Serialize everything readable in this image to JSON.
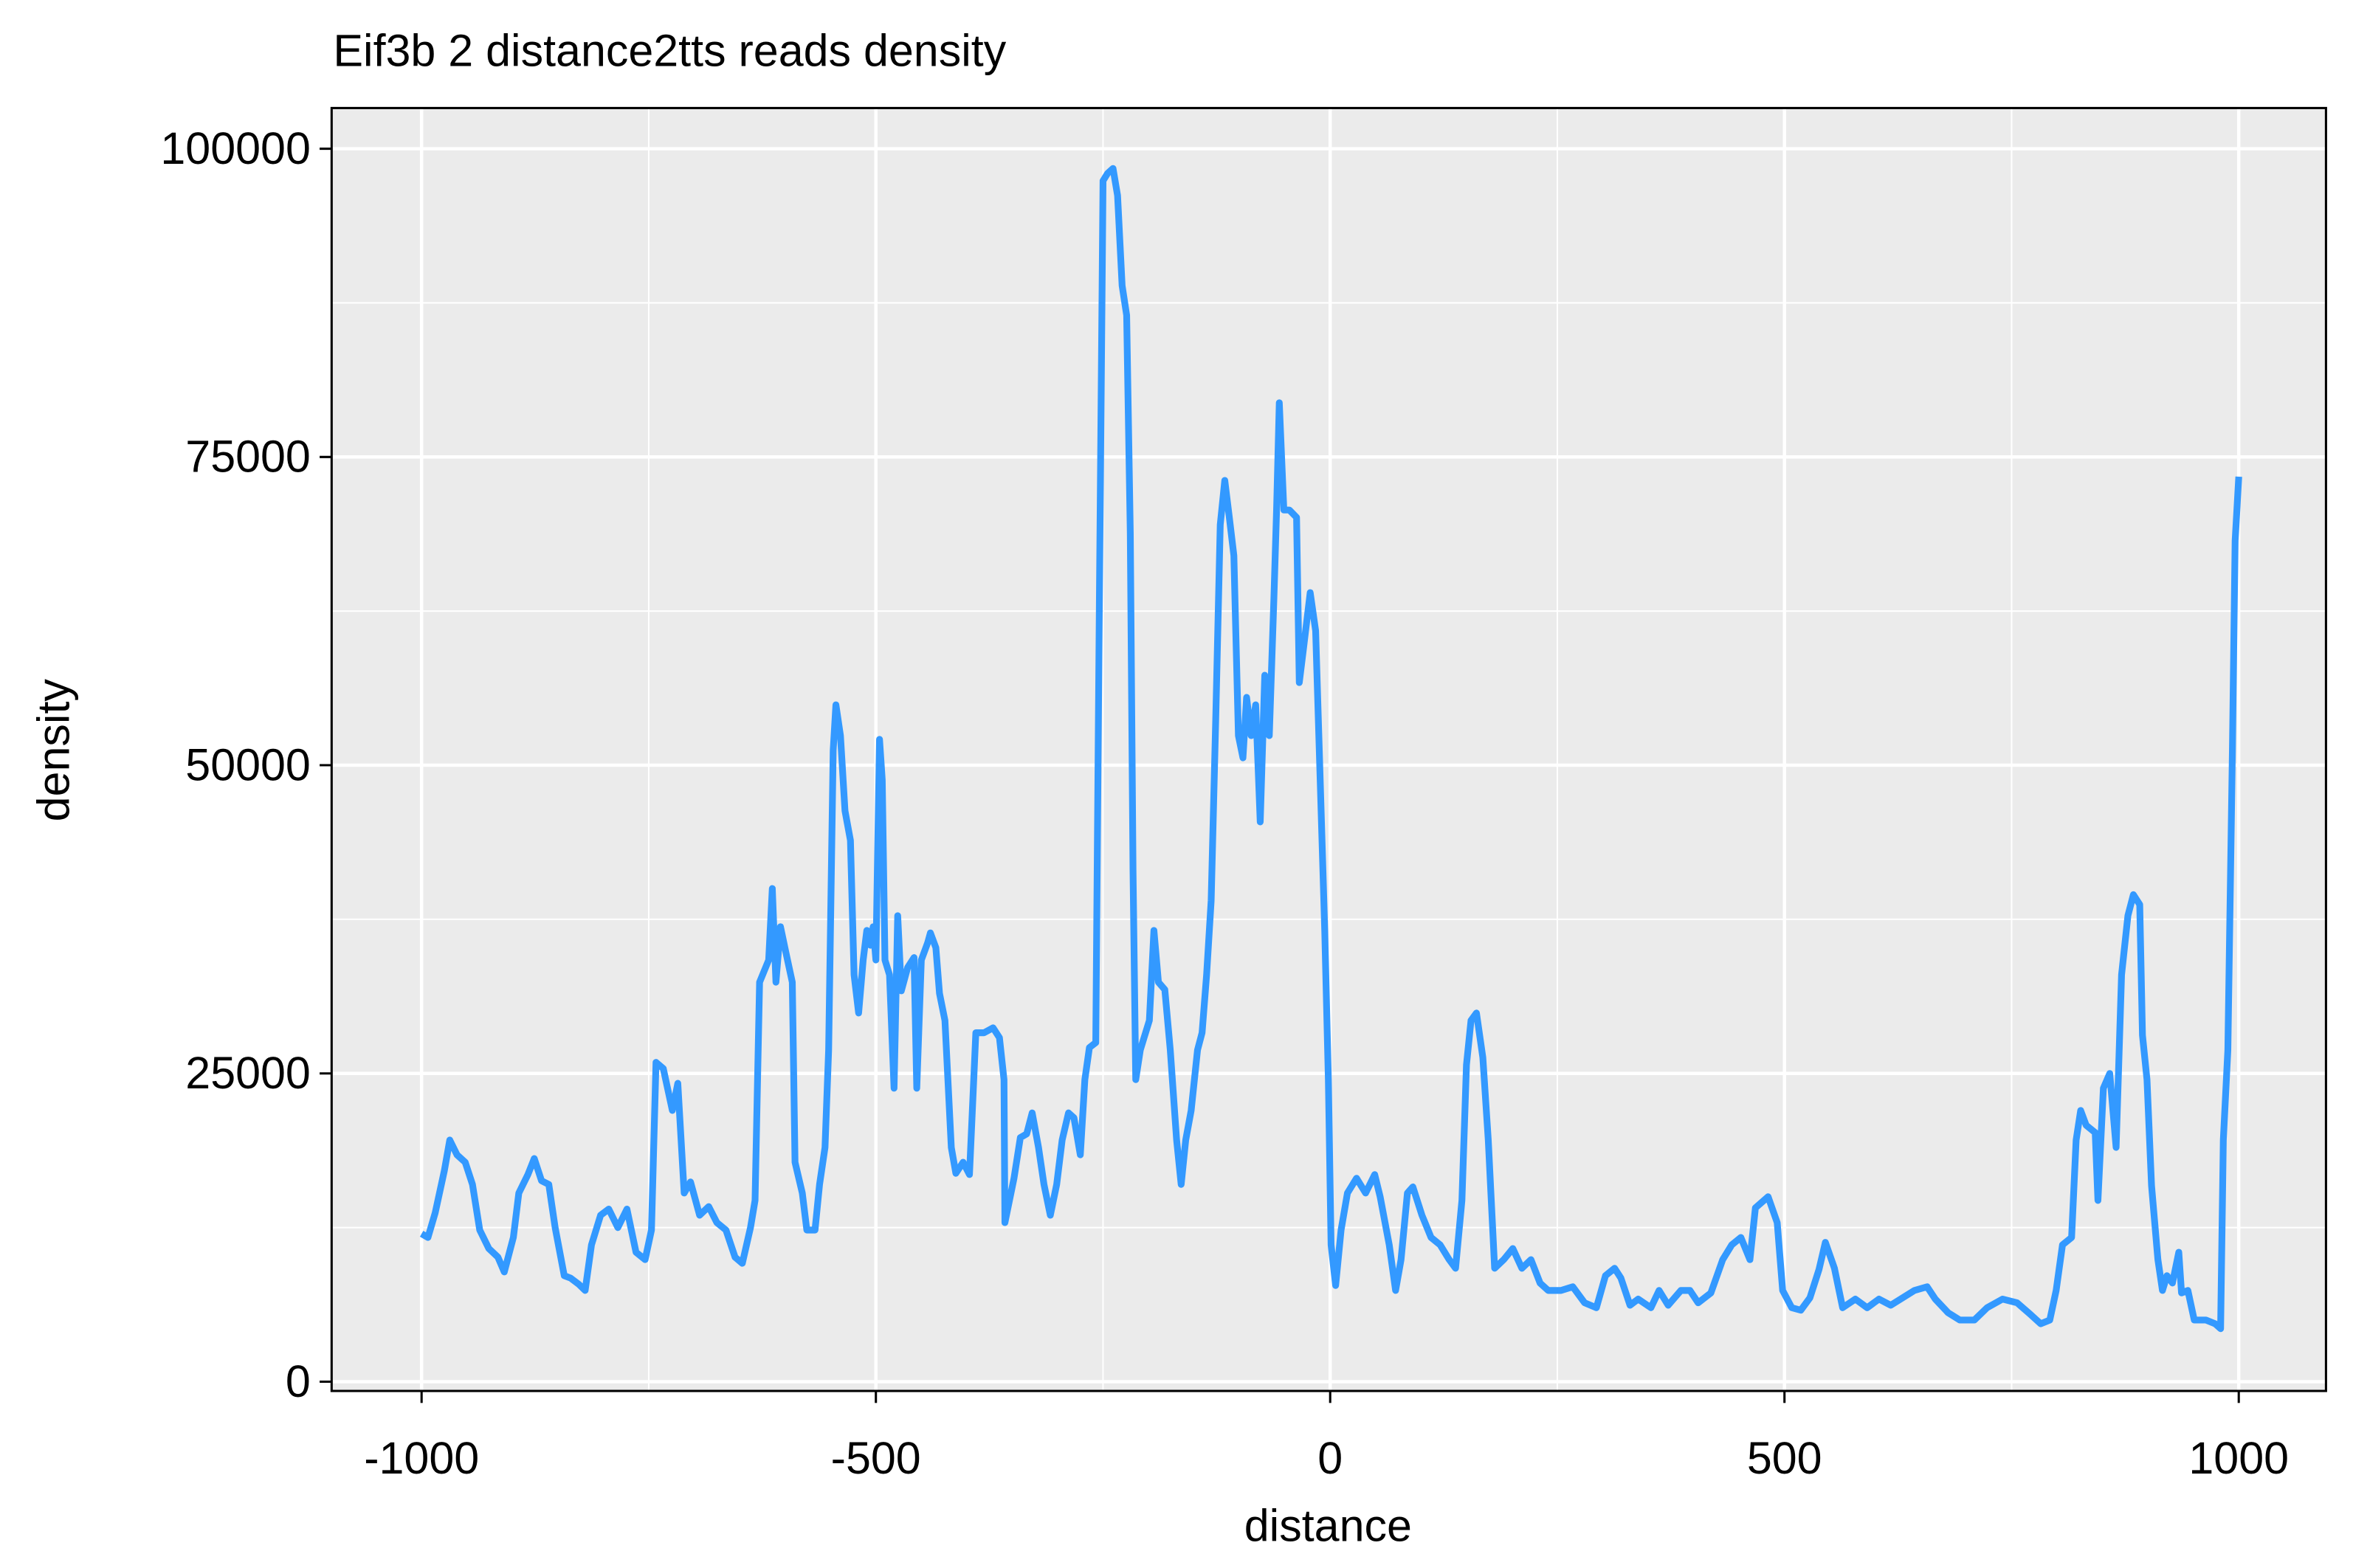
{
  "chart_data": {
    "type": "line",
    "title": "Eif3b 2 distance2tts reads density",
    "xlabel": "distance",
    "ylabel": "density",
    "color": "#3399ff",
    "grid": true,
    "minor_grid": true,
    "xlim": [
      -1099,
      1096
    ],
    "ylim": [
      -750,
      103300
    ],
    "xticks": [
      -1000,
      -500,
      0,
      500,
      1000
    ],
    "yticks": [
      0,
      25000,
      50000,
      75000,
      100000
    ],
    "x": [
      -1000,
      -993,
      -985,
      -975,
      -969,
      -961,
      -952,
      -944,
      -936,
      -926,
      -916,
      -909,
      -899,
      -893,
      -883,
      -876,
      -868,
      -860,
      -853,
      -843,
      -836,
      -827,
      -820,
      -813,
      -803,
      -794,
      -784,
      -774,
      -764,
      -754,
      -747,
      -742,
      -734,
      -724,
      -718,
      -711,
      -704,
      -694,
      -684,
      -675,
      -665,
      -655,
      -647,
      -638,
      -633,
      -628,
      -618,
      -614,
      -610,
      -605,
      -599,
      -592,
      -589,
      -581,
      -576,
      -567,
      -562,
      -556,
      -552,
      -547,
      -544,
      -539,
      -534,
      -528,
      -524,
      -519,
      -514,
      -510,
      -506,
      -503,
      -500,
      -496,
      -493,
      -490,
      -485,
      -480,
      -476,
      -472,
      -465,
      -458,
      -455,
      -450,
      -443,
      -440,
      -434,
      -430,
      -424,
      -417,
      -412,
      -404,
      -397,
      -390,
      -381,
      -371,
      -364,
      -359,
      -358,
      -348,
      -341,
      -334,
      -328,
      -321,
      -315,
      -308,
      -301,
      -295,
      -288,
      -282,
      -275,
      -270,
      -265,
      -258,
      -254,
      -250,
      -245,
      -239,
      -234,
      -229,
      -224,
      -220,
      -217,
      -214,
      -209,
      -204,
      -199,
      -194,
      -189,
      -182,
      -176,
      -169,
      -164,
      -159,
      -153,
      -146,
      -141,
      -136,
      -131,
      -126,
      -121,
      -116,
      -111,
      -106,
      -101,
      -96,
      -92,
      -87,
      -82,
      -77,
      -72,
      -67,
      -62,
      -59,
      -56,
      -51,
      -45,
      -37,
      -34,
      -29,
      -22,
      -16,
      -11,
      -6,
      -2,
      1,
      6,
      12,
      19,
      29,
      39,
      49,
      55,
      65,
      72,
      78,
      85,
      91,
      101,
      111,
      121,
      131,
      138,
      145,
      150,
      155,
      161,
      168,
      174,
      181,
      191,
      201,
      211,
      221,
      231,
      240,
      254,
      267,
      280,
      293,
      303,
      313,
      320,
      330,
      339,
      353,
      362,
      372,
      386,
      396,
      405,
      419,
      432,
      442,
      452,
      462,
      468,
      482,
      492,
      498,
      508,
      518,
      528,
      538,
      545,
      555,
      564,
      578,
      591,
      604,
      617,
      630,
      643,
      657,
      666,
      680,
      693,
      709,
      723,
      740,
      756,
      770,
      782,
      792,
      799,
      806,
      816,
      821,
      826,
      832,
      842,
      845,
      851,
      858,
      865,
      871,
      878,
      884,
      891,
      894,
      899,
      904,
      911,
      916,
      921,
      927,
      934,
      937,
      944,
      951,
      964,
      974,
      980,
      983,
      988,
      993,
      996,
      1000
    ],
    "values": [
      12000,
      11700,
      13700,
      17100,
      19600,
      18400,
      17800,
      16000,
      12300,
      10800,
      10100,
      8900,
      11700,
      15300,
      16800,
      18100,
      16300,
      16000,
      12500,
      8600,
      8400,
      7900,
      7400,
      11100,
      13500,
      14000,
      12500,
      14000,
      10500,
      9900,
      12300,
      25900,
      25400,
      22000,
      24200,
      15300,
      16200,
      13500,
      14200,
      12900,
      12300,
      10100,
      9600,
      12500,
      14700,
      32400,
      34200,
      40000,
      32400,
      36900,
      34800,
      32400,
      17800,
      15300,
      12300,
      12300,
      16000,
      19000,
      26900,
      51200,
      54900,
      52400,
      46300,
      43900,
      33000,
      29900,
      34200,
      36600,
      35400,
      36900,
      34200,
      52100,
      48800,
      34200,
      33000,
      23800,
      37800,
      31700,
      33600,
      34400,
      23800,
      34200,
      35600,
      36400,
      35200,
      31500,
      29300,
      19000,
      16900,
      17800,
      16800,
      28300,
      28300,
      28700,
      27900,
      24500,
      12900,
      16500,
      19800,
      20100,
      21800,
      19000,
      16000,
      13500,
      16000,
      19600,
      21800,
      21400,
      18400,
      24500,
      27100,
      27500,
      63400,
      97400,
      98000,
      98400,
      96200,
      88900,
      86500,
      68800,
      41500,
      24500,
      26900,
      28100,
      29300,
      36600,
      32400,
      31800,
      26900,
      19600,
      16000,
      19600,
      22000,
      26900,
      28300,
      33000,
      39000,
      53600,
      69500,
      73100,
      70100,
      67000,
      52400,
      50600,
      55500,
      52400,
      54900,
      45400,
      57300,
      52400,
      63400,
      70700,
      79400,
      70700,
      70700,
      70100,
      56700,
      59700,
      64000,
      60900,
      48800,
      36600,
      24500,
      11100,
      7800,
      12300,
      15300,
      16500,
      15300,
      16800,
      15000,
      11100,
      7400,
      9900,
      15300,
      15800,
      13500,
      11700,
      11100,
      9900,
      9200,
      14700,
      25700,
      29300,
      29900,
      26300,
      19600,
      9200,
      9900,
      10800,
      9200,
      9900,
      8000,
      7400,
      7400,
      7700,
      6400,
      6000,
      8600,
      9200,
      8400,
      6200,
      6700,
      6000,
      7400,
      6200,
      7400,
      7400,
      6400,
      7200,
      9900,
      11100,
      11700,
      9900,
      14100,
      15000,
      12900,
      7400,
      6000,
      5800,
      6800,
      9100,
      11300,
      9200,
      6000,
      6700,
      6000,
      6700,
      6200,
      6800,
      7400,
      7700,
      6700,
      5600,
      5000,
      5000,
      6000,
      6700,
      6400,
      5500,
      4700,
      5000,
      7400,
      11100,
      11700,
      19600,
      22000,
      20800,
      20200,
      14700,
      23800,
      25000,
      19000,
      33000,
      37800,
      39500,
      38700,
      28100,
      24500,
      15900,
      9900,
      7400,
      8600,
      8000,
      10500,
      7200,
      7400,
      5000,
      5000,
      4700,
      4300,
      19600,
      26900,
      51200,
      68200,
      73400
    ]
  }
}
